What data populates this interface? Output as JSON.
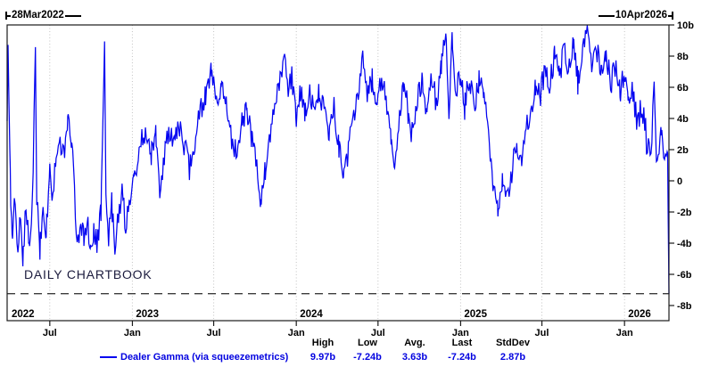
{
  "annotations": {
    "range_start": "28Mar2022",
    "range_end": "10Apr2026",
    "watermark": "DAILY CHARTBOOK"
  },
  "legend": {
    "series_label": "Dealer Gamma (via squeezemetrics)",
    "columns": [
      {
        "label": "High",
        "value": "9.97b"
      },
      {
        "label": "Low",
        "value": "-7.24b"
      },
      {
        "label": "Avg.",
        "value": "3.63b"
      },
      {
        "label": "Last",
        "value": "-7.24b"
      },
      {
        "label": "StdDev",
        "value": "2.87b"
      }
    ]
  },
  "chart_data": {
    "type": "line",
    "series_name": "Dealer Gamma (via squeezemetrics)",
    "x_range": {
      "start_label": "28Mar2022",
      "end_label": "10Apr2026",
      "start_iso": "2022-03-28",
      "end_iso": "2026-04-10"
    },
    "ylim": [
      -8.97,
      10
    ],
    "unit": "b",
    "grid": "vertical-dotted",
    "legend_position": "bottom",
    "line_color": "#0303f0",
    "last_value_line": {
      "value": -7.24,
      "style": "dashed"
    },
    "stats": {
      "high": 9.97,
      "low": -7.24,
      "avg": 3.63,
      "last": -7.24,
      "stddev": 2.87
    },
    "y_ticks": [
      {
        "value": 10,
        "label": "10b"
      },
      {
        "value": 8,
        "label": "8b"
      },
      {
        "value": 6,
        "label": "6b"
      },
      {
        "value": 4,
        "label": "4b"
      },
      {
        "value": 2,
        "label": "2b"
      },
      {
        "value": 0,
        "label": "0"
      },
      {
        "value": -2,
        "label": "-2b"
      },
      {
        "value": -4,
        "label": "-4b"
      },
      {
        "value": -6,
        "label": "-6b"
      },
      {
        "value": -8,
        "label": "-8b"
      }
    ],
    "x_month_ticks": [
      {
        "iso": "2022-07-01",
        "label": "Jul"
      },
      {
        "iso": "2023-01-01",
        "label": "Jan"
      },
      {
        "iso": "2023-07-01",
        "label": "Jul"
      },
      {
        "iso": "2024-01-01",
        "label": "Jan"
      },
      {
        "iso": "2024-07-01",
        "label": "Jul"
      },
      {
        "iso": "2025-01-01",
        "label": "Jan"
      },
      {
        "iso": "2025-07-01",
        "label": "Jul"
      },
      {
        "iso": "2026-01-01",
        "label": "Jan"
      }
    ],
    "x_year_labels": [
      {
        "iso": "2022-03-28",
        "label": "2022"
      },
      {
        "iso": "2023-01-01",
        "label": "2023"
      },
      {
        "iso": "2024-01-01",
        "label": "2024"
      },
      {
        "iso": "2025-01-01",
        "label": "2025"
      },
      {
        "iso": "2026-01-01",
        "label": "2026"
      }
    ],
    "anchors_note": "values in billions estimated from pixels; [date, value, local_daily_volatility]",
    "anchors": [
      [
        "2022-03-28",
        3.8,
        0.2
      ],
      [
        "2022-03-30",
        8.8,
        0.2
      ],
      [
        "2022-04-04",
        0.0,
        0.8
      ],
      [
        "2022-04-08",
        -4.0,
        0.6
      ],
      [
        "2022-04-13",
        -0.8,
        1.0
      ],
      [
        "2022-04-19",
        -4.5,
        0.8
      ],
      [
        "2022-04-25",
        -2.2,
        1.1
      ],
      [
        "2022-05-02",
        -4.7,
        0.8
      ],
      [
        "2022-05-09",
        -2.0,
        1.1
      ],
      [
        "2022-05-16",
        -4.5,
        0.9
      ],
      [
        "2022-05-23",
        -1.8,
        1.0
      ],
      [
        "2022-05-30",
        8.5,
        0.3
      ],
      [
        "2022-06-02",
        -1.2,
        0.9
      ],
      [
        "2022-06-09",
        -4.3,
        0.8
      ],
      [
        "2022-06-16",
        -1.5,
        1.0
      ],
      [
        "2022-06-23",
        -3.2,
        0.9
      ],
      [
        "2022-07-01",
        0.5,
        0.8
      ],
      [
        "2022-07-08",
        -0.8,
        0.9
      ],
      [
        "2022-07-15",
        1.2,
        0.8
      ],
      [
        "2022-07-22",
        2.6,
        0.8
      ],
      [
        "2022-08-01",
        1.8,
        0.8
      ],
      [
        "2022-08-10",
        3.8,
        0.7
      ],
      [
        "2022-08-18",
        2.8,
        0.8
      ],
      [
        "2022-08-25",
        -1.0,
        0.9
      ],
      [
        "2022-08-31",
        -4.4,
        0.7
      ],
      [
        "2022-09-08",
        -2.2,
        0.9
      ],
      [
        "2022-09-15",
        -4.0,
        0.8
      ],
      [
        "2022-09-22",
        -2.4,
        0.9
      ],
      [
        "2022-09-29",
        -4.6,
        0.7
      ],
      [
        "2022-10-07",
        -3.0,
        0.9
      ],
      [
        "2022-10-15",
        -4.2,
        0.8
      ],
      [
        "2022-10-23",
        -2.0,
        0.9
      ],
      [
        "2022-10-31",
        8.9,
        0.3
      ],
      [
        "2022-11-03",
        -1.2,
        0.9
      ],
      [
        "2022-11-09",
        -3.4,
        0.9
      ],
      [
        "2022-11-16",
        -1.6,
        0.9
      ],
      [
        "2022-11-23",
        -4.3,
        0.8
      ],
      [
        "2022-12-01",
        -2.4,
        0.9
      ],
      [
        "2022-12-09",
        -0.6,
        0.9
      ],
      [
        "2022-12-17",
        -2.8,
        0.8
      ],
      [
        "2022-12-27",
        -1.2,
        0.8
      ],
      [
        "2023-01-05",
        0.2,
        0.8
      ],
      [
        "2023-01-14",
        1.6,
        0.8
      ],
      [
        "2023-01-24",
        2.8,
        0.8
      ],
      [
        "2023-02-03",
        3.2,
        0.8
      ],
      [
        "2023-02-12",
        1.8,
        0.8
      ],
      [
        "2023-02-22",
        3.2,
        0.8
      ],
      [
        "2023-03-04",
        -1.0,
        0.8
      ],
      [
        "2023-03-13",
        1.4,
        0.8
      ],
      [
        "2023-03-23",
        3.4,
        0.8
      ],
      [
        "2023-04-04",
        2.2,
        0.8
      ],
      [
        "2023-04-14",
        3.8,
        0.8
      ],
      [
        "2023-04-26",
        2.4,
        0.8
      ],
      [
        "2023-05-08",
        0.6,
        0.8
      ],
      [
        "2023-05-18",
        2.2,
        0.8
      ],
      [
        "2023-05-30",
        4.4,
        0.8
      ],
      [
        "2023-06-12",
        5.4,
        0.8
      ],
      [
        "2023-06-26",
        7.2,
        0.6
      ],
      [
        "2023-07-07",
        5.0,
        0.8
      ],
      [
        "2023-07-18",
        6.4,
        0.8
      ],
      [
        "2023-07-30",
        5.2,
        0.8
      ],
      [
        "2023-08-10",
        2.8,
        0.9
      ],
      [
        "2023-08-22",
        1.6,
        0.9
      ],
      [
        "2023-09-02",
        3.6,
        0.8
      ],
      [
        "2023-09-12",
        4.8,
        0.8
      ],
      [
        "2023-09-24",
        2.8,
        0.8
      ],
      [
        "2023-10-05",
        0.6,
        0.8
      ],
      [
        "2023-10-14",
        -1.4,
        0.7
      ],
      [
        "2023-10-24",
        0.8,
        0.8
      ],
      [
        "2023-11-04",
        3.2,
        0.8
      ],
      [
        "2023-11-16",
        5.6,
        0.8
      ],
      [
        "2023-11-28",
        6.8,
        0.7
      ],
      [
        "2023-12-06",
        8.5,
        0.4
      ],
      [
        "2023-12-14",
        5.8,
        0.8
      ],
      [
        "2023-12-22",
        6.8,
        0.7
      ],
      [
        "2023-12-31",
        4.0,
        0.7
      ],
      [
        "2024-01-10",
        5.6,
        0.8
      ],
      [
        "2024-01-20",
        4.4,
        0.8
      ],
      [
        "2024-01-31",
        5.8,
        0.8
      ],
      [
        "2024-02-10",
        4.2,
        0.8
      ],
      [
        "2024-02-21",
        5.6,
        0.8
      ],
      [
        "2024-03-03",
        4.4,
        0.8
      ],
      [
        "2024-03-14",
        3.2,
        0.8
      ],
      [
        "2024-03-25",
        4.6,
        0.8
      ],
      [
        "2024-04-05",
        2.2,
        0.9
      ],
      [
        "2024-04-15",
        0.0,
        0.7
      ],
      [
        "2024-04-25",
        1.8,
        0.9
      ],
      [
        "2024-05-06",
        3.6,
        0.8
      ],
      [
        "2024-05-16",
        5.4,
        0.8
      ],
      [
        "2024-05-28",
        8.0,
        0.5
      ],
      [
        "2024-06-07",
        5.2,
        0.9
      ],
      [
        "2024-06-18",
        6.6,
        0.8
      ],
      [
        "2024-06-28",
        4.6,
        0.9
      ],
      [
        "2024-07-09",
        6.8,
        0.8
      ],
      [
        "2024-07-19",
        5.2,
        0.9
      ],
      [
        "2024-07-30",
        3.0,
        0.9
      ],
      [
        "2024-08-07",
        0.4,
        0.6
      ],
      [
        "2024-08-16",
        3.6,
        0.9
      ],
      [
        "2024-08-27",
        6.2,
        0.8
      ],
      [
        "2024-09-06",
        4.4,
        0.9
      ],
      [
        "2024-09-17",
        2.6,
        0.9
      ],
      [
        "2024-09-27",
        5.4,
        0.8
      ],
      [
        "2024-10-08",
        6.4,
        0.8
      ],
      [
        "2024-10-18",
        4.6,
        0.9
      ],
      [
        "2024-10-29",
        6.8,
        0.8
      ],
      [
        "2024-11-08",
        5.0,
        0.9
      ],
      [
        "2024-11-19",
        7.6,
        0.8
      ],
      [
        "2024-11-29",
        9.5,
        0.3
      ],
      [
        "2024-12-06",
        4.2,
        0.9
      ],
      [
        "2024-12-13",
        9.4,
        0.4
      ],
      [
        "2024-12-20",
        5.4,
        0.9
      ],
      [
        "2024-12-31",
        6.6,
        0.8
      ],
      [
        "2025-01-10",
        4.8,
        0.9
      ],
      [
        "2025-01-21",
        6.6,
        0.8
      ],
      [
        "2025-01-31",
        5.0,
        0.9
      ],
      [
        "2025-02-11",
        6.4,
        0.8
      ],
      [
        "2025-02-21",
        5.6,
        0.8
      ],
      [
        "2025-03-04",
        2.6,
        0.9
      ],
      [
        "2025-03-14",
        -0.6,
        0.8
      ],
      [
        "2025-03-25",
        -1.8,
        0.6
      ],
      [
        "2025-04-04",
        0.4,
        0.9
      ],
      [
        "2025-04-15",
        -1.2,
        0.8
      ],
      [
        "2025-04-25",
        0.6,
        0.9
      ],
      [
        "2025-05-06",
        2.2,
        0.9
      ],
      [
        "2025-05-16",
        1.2,
        0.9
      ],
      [
        "2025-05-27",
        3.4,
        0.9
      ],
      [
        "2025-06-06",
        4.6,
        0.9
      ],
      [
        "2025-06-17",
        6.2,
        0.8
      ],
      [
        "2025-06-27",
        5.4,
        0.9
      ],
      [
        "2025-07-08",
        7.2,
        0.8
      ],
      [
        "2025-07-18",
        6.0,
        0.9
      ],
      [
        "2025-07-29",
        8.0,
        0.8
      ],
      [
        "2025-08-08",
        6.6,
        0.9
      ],
      [
        "2025-08-19",
        8.4,
        0.8
      ],
      [
        "2025-08-29",
        6.8,
        0.9
      ],
      [
        "2025-09-09",
        8.6,
        0.8
      ],
      [
        "2025-09-19",
        6.4,
        0.9
      ],
      [
        "2025-09-30",
        8.2,
        0.8
      ],
      [
        "2025-10-10",
        9.97,
        0.2
      ],
      [
        "2025-10-20",
        7.0,
        0.9
      ],
      [
        "2025-10-30",
        8.8,
        0.8
      ],
      [
        "2025-11-10",
        6.6,
        0.9
      ],
      [
        "2025-11-20",
        8.4,
        0.8
      ],
      [
        "2025-12-01",
        6.2,
        0.9
      ],
      [
        "2025-12-11",
        7.4,
        0.8
      ],
      [
        "2025-12-22",
        5.6,
        0.9
      ],
      [
        "2025-12-31",
        6.8,
        0.8
      ],
      [
        "2026-01-09",
        4.6,
        0.9
      ],
      [
        "2026-01-20",
        5.8,
        0.9
      ],
      [
        "2026-01-30",
        3.6,
        1.0
      ],
      [
        "2026-02-10",
        4.8,
        0.9
      ],
      [
        "2026-02-20",
        2.4,
        1.0
      ],
      [
        "2026-03-03",
        2.6,
        1.0
      ],
      [
        "2026-03-08",
        6.8,
        0.5
      ],
      [
        "2026-03-13",
        0.8,
        1.0
      ],
      [
        "2026-03-24",
        2.8,
        1.0
      ],
      [
        "2026-04-02",
        1.2,
        0.6
      ],
      [
        "2026-04-07",
        1.6,
        0.3
      ],
      [
        "2026-04-10",
        -7.24,
        0.0
      ]
    ]
  }
}
